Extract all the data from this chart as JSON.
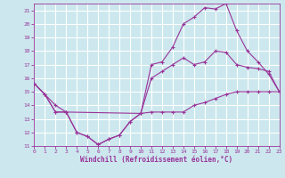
{
  "xlabel": "Windchill (Refroidissement éolien,°C)",
  "bg_color": "#cce8ee",
  "grid_color": "#ffffff",
  "line_color": "#993399",
  "xmin": 0,
  "xmax": 23,
  "ymin": 11,
  "ymax": 21.5,
  "yticks": [
    11,
    12,
    13,
    14,
    15,
    16,
    17,
    18,
    19,
    20,
    21
  ],
  "xticks": [
    0,
    1,
    2,
    3,
    4,
    5,
    6,
    7,
    8,
    9,
    10,
    11,
    12,
    13,
    14,
    15,
    16,
    17,
    18,
    19,
    20,
    21,
    22,
    23
  ],
  "series": [
    {
      "x": [
        0,
        1,
        2,
        3,
        4,
        5,
        6,
        7,
        8,
        9,
        10,
        11,
        12,
        13,
        14,
        15,
        16,
        17,
        18,
        19,
        20,
        21,
        22,
        23
      ],
      "y": [
        15.6,
        14.8,
        13.5,
        13.5,
        12.0,
        11.7,
        11.1,
        11.5,
        11.8,
        12.8,
        13.4,
        13.5,
        13.5,
        13.5,
        13.5,
        14.0,
        14.2,
        14.5,
        14.8,
        15.0,
        15.0,
        15.0,
        15.0,
        15.0
      ]
    },
    {
      "x": [
        0,
        2,
        3,
        10,
        11,
        12,
        13,
        14,
        15,
        16,
        17,
        18,
        19,
        20,
        21,
        22,
        23
      ],
      "y": [
        15.6,
        14.0,
        13.5,
        13.4,
        16.0,
        16.5,
        17.0,
        17.5,
        17.0,
        17.2,
        18.0,
        17.9,
        17.0,
        16.8,
        16.7,
        16.5,
        15.0
      ]
    },
    {
      "x": [
        0,
        1,
        2,
        3,
        4,
        5,
        6,
        7,
        8,
        9,
        10,
        11,
        12,
        13,
        14,
        15,
        16,
        17,
        18,
        19,
        20,
        21,
        22,
        23
      ],
      "y": [
        15.6,
        14.8,
        13.5,
        13.5,
        12.0,
        11.7,
        11.1,
        11.5,
        11.8,
        12.8,
        13.4,
        17.0,
        17.2,
        18.3,
        20.0,
        20.5,
        21.2,
        21.1,
        21.5,
        19.5,
        18.0,
        17.2,
        16.3,
        15.0
      ]
    }
  ]
}
